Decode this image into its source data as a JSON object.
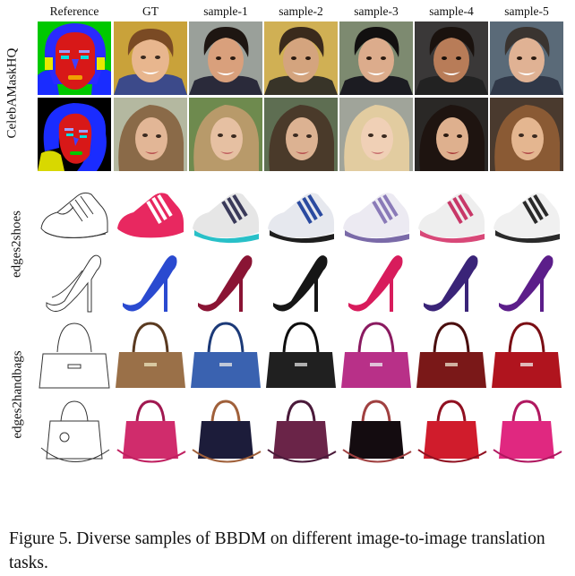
{
  "columns": [
    "Reference",
    "GT",
    "sample-1",
    "sample-2",
    "sample-3",
    "sample-4",
    "sample-5"
  ],
  "row_groups": [
    {
      "label": "CelebAMaskHQ"
    },
    {
      "label": "edges2shoes"
    },
    {
      "label": "edges2handbags"
    }
  ],
  "caption": "Figure 5. Diverse samples of BBDM on different image-to-image translation tasks."
}
